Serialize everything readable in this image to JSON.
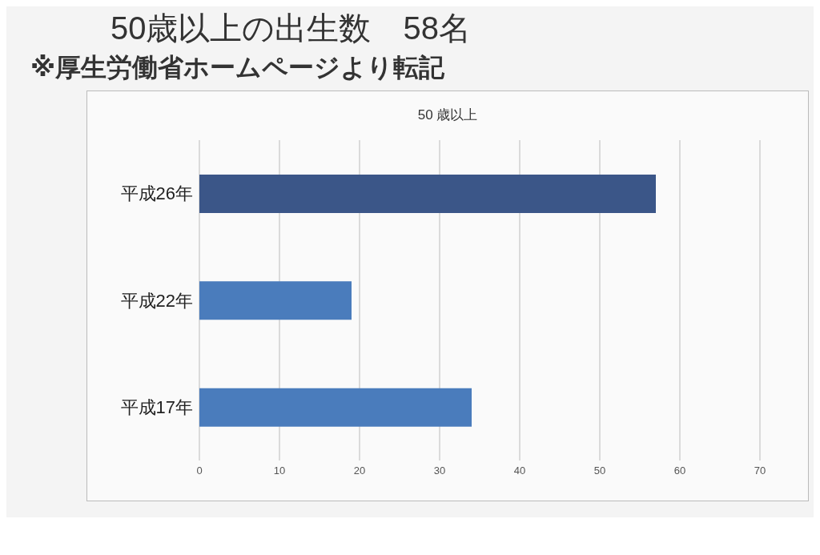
{
  "chart_data": {
    "type": "bar",
    "orientation": "horizontal",
    "title": "50歳以上の出生数　58名",
    "subtitle": "※厚生労働省ホームページより転記",
    "annotations": [
      "50 歳以上"
    ],
    "categories": [
      "平成26年",
      "平成22年",
      "平成17年"
    ],
    "values": [
      57,
      19,
      34
    ],
    "colors": [
      "#3b5688",
      "#4a7cbc",
      "#4a7cbc"
    ],
    "xlim": [
      0,
      70
    ],
    "xticks": [
      0,
      10,
      20,
      30,
      40,
      50,
      60,
      70
    ],
    "grid": "x"
  }
}
